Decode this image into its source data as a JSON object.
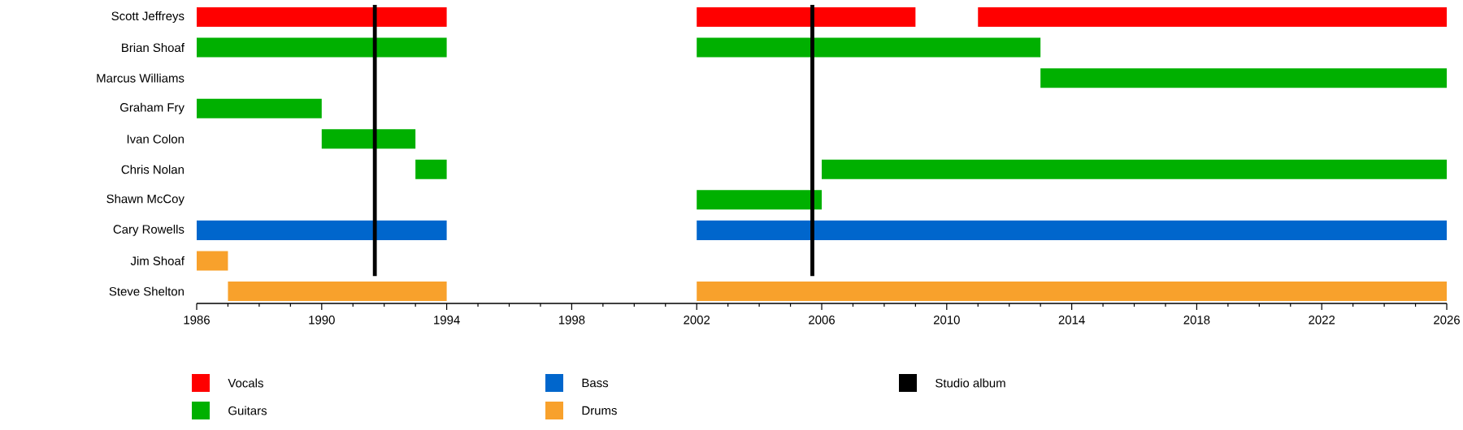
{
  "chart_data": {
    "type": "bar",
    "orientation": "horizontal",
    "categories": [
      "Scott Jeffreys",
      "Brian Shoaf",
      "Marcus Williams",
      "Graham Fry",
      "Ivan Colon",
      "Chris Nolan",
      "Shawn McCoy",
      "Cary Rowells",
      "Jim Shoaf",
      "Steve Shelton"
    ],
    "series": [
      {
        "name": "Vocals",
        "color": "#ff0000",
        "base": [
          1986,
          null,
          null,
          null,
          null,
          null,
          null,
          null,
          null,
          null
        ],
        "values": [
          8,
          null,
          null,
          null,
          null,
          null,
          null,
          null,
          null,
          null
        ]
      },
      {
        "color": "#ff0000",
        "base": [
          2002,
          null,
          null,
          null,
          null,
          null,
          null,
          null,
          null,
          null
        ],
        "values": [
          7,
          null,
          null,
          null,
          null,
          null,
          null,
          null,
          null,
          null
        ]
      },
      {
        "color": "#ff0000",
        "base": [
          2011,
          null,
          null,
          null,
          null,
          null,
          null,
          null,
          null,
          null
        ],
        "values": [
          15,
          null,
          null,
          null,
          null,
          null,
          null,
          null,
          null,
          null
        ]
      },
      {
        "name": "Guitars",
        "color": "#00b000",
        "base": [
          null,
          1986,
          null,
          1986,
          1990,
          1993,
          2002,
          null,
          null,
          null
        ],
        "values": [
          null,
          8,
          null,
          4,
          3,
          1,
          4,
          null,
          null,
          null
        ]
      },
      {
        "color": "#00b000",
        "base": [
          null,
          2002,
          2013,
          null,
          null,
          2006,
          null,
          null,
          null,
          null
        ],
        "values": [
          null,
          11,
          13,
          null,
          null,
          20,
          null,
          null,
          null,
          null
        ]
      },
      {
        "name": "Bass",
        "color": "#0066cc",
        "base": [
          null,
          null,
          null,
          null,
          null,
          null,
          null,
          1986,
          null,
          null
        ],
        "values": [
          null,
          null,
          null,
          null,
          null,
          null,
          null,
          8,
          null,
          null
        ]
      },
      {
        "color": "#0066cc",
        "base": [
          null,
          null,
          null,
          null,
          null,
          null,
          null,
          2002,
          null,
          null
        ],
        "values": [
          null,
          null,
          null,
          null,
          null,
          null,
          null,
          24,
          null,
          null
        ]
      },
      {
        "name": "Drums",
        "color": "#f8a12c",
        "base": [
          null,
          null,
          null,
          null,
          null,
          null,
          null,
          null,
          1986,
          1987
        ],
        "values": [
          null,
          null,
          null,
          null,
          null,
          null,
          null,
          null,
          1,
          7
        ]
      },
      {
        "color": "#f8a12c",
        "base": [
          null,
          null,
          null,
          null,
          null,
          null,
          null,
          null,
          null,
          2002
        ],
        "values": [
          null,
          null,
          null,
          null,
          null,
          null,
          null,
          null,
          null,
          24
        ]
      }
    ],
    "ref_lines": [
      {
        "axis": "x",
        "value": 1991.7,
        "label": "Studio album",
        "color": "#000000"
      },
      {
        "axis": "x",
        "value": 2005.7,
        "color": "#000000"
      }
    ],
    "xlim": [
      1986,
      2026
    ],
    "xticks": [
      1986,
      1990,
      1994,
      1998,
      2002,
      2006,
      2010,
      2014,
      2018,
      2022,
      2026
    ],
    "grid": false,
    "legend": "bottom"
  }
}
